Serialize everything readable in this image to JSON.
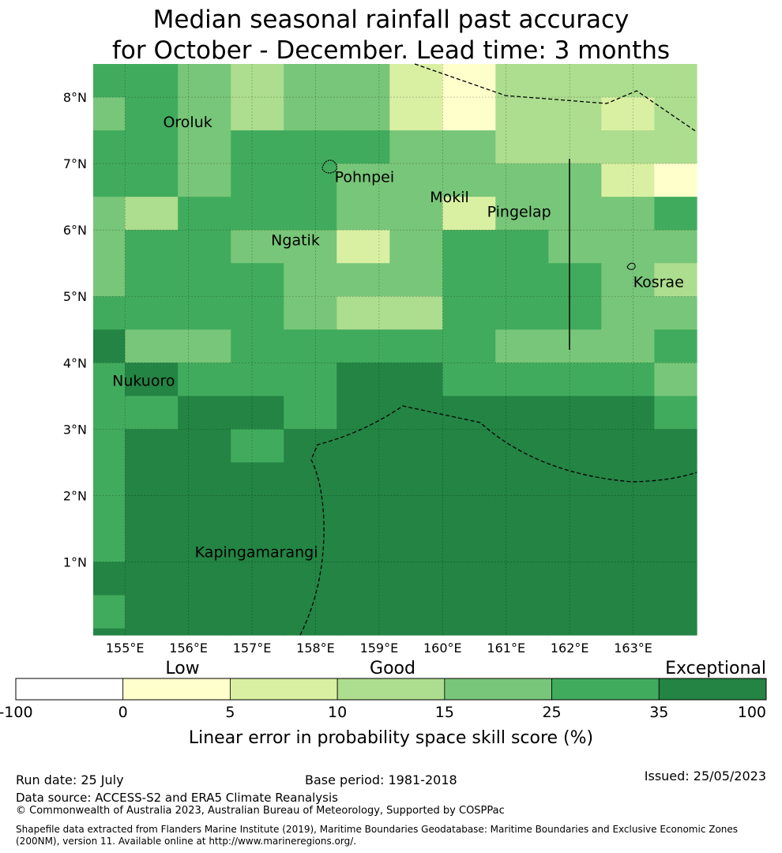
{
  "title": {
    "line1": "Median seasonal rainfall past accuracy",
    "line2": "for October - December. Lead time: 3 months"
  },
  "map": {
    "lon_range": [
      154.5,
      164.0
    ],
    "lat_range": [
      -0.1,
      8.5
    ],
    "x_ticks": [
      {
        "lon": 155,
        "label": "155°E"
      },
      {
        "lon": 156,
        "label": "156°E"
      },
      {
        "lon": 157,
        "label": "157°E"
      },
      {
        "lon": 158,
        "label": "158°E"
      },
      {
        "lon": 159,
        "label": "159°E"
      },
      {
        "lon": 160,
        "label": "160°E"
      },
      {
        "lon": 161,
        "label": "161°E"
      },
      {
        "lon": 162,
        "label": "162°E"
      },
      {
        "lon": 163,
        "label": "163°E"
      }
    ],
    "y_ticks": [
      {
        "lat": 8,
        "label": "8°N"
      },
      {
        "lat": 7,
        "label": "7°N"
      },
      {
        "lat": 6,
        "label": "6°N"
      },
      {
        "lat": 5,
        "label": "5°N"
      },
      {
        "lat": 4,
        "label": "4°N"
      },
      {
        "lat": 3,
        "label": "3°N"
      },
      {
        "lat": 2,
        "label": "2°N"
      },
      {
        "lat": 1,
        "label": "1°N"
      }
    ],
    "places": [
      {
        "name": "Oroluk",
        "lon": 155.6,
        "lat": 7.55
      },
      {
        "name": "Pohnpei",
        "lon": 158.3,
        "lat": 6.72
      },
      {
        "name": "Mokil",
        "lon": 159.8,
        "lat": 6.42
      },
      {
        "name": "Pingelap",
        "lon": 160.7,
        "lat": 6.2
      },
      {
        "name": "Ngatik",
        "lon": 157.3,
        "lat": 5.77
      },
      {
        "name": "Kosrae",
        "lon": 163.0,
        "lat": 5.14
      },
      {
        "name": "Nukuoro",
        "lon": 154.8,
        "lat": 3.65
      },
      {
        "name": "Kapingamarangi",
        "lon": 156.1,
        "lat": 1.07
      }
    ],
    "grid": {
      "lon_edges": [
        154.5,
        155.0,
        155.833,
        156.667,
        157.5,
        158.333,
        159.167,
        160.0,
        160.833,
        161.667,
        162.5,
        163.333,
        164.0
      ],
      "lat_edges": [
        8.5,
        8.333,
        7.5,
        6.667,
        5.833,
        5.0,
        4.167,
        3.333,
        2.5,
        1.667,
        0.833,
        0.0,
        -0.1
      ],
      "rows": [
        [
          4,
          4,
          3,
          2,
          3,
          3,
          1,
          0,
          2,
          2,
          2,
          2
        ],
        [
          3,
          4,
          3,
          2,
          3,
          3,
          1,
          0,
          2,
          2,
          1,
          2
        ],
        [
          4,
          4,
          3,
          4,
          4,
          4,
          3,
          3,
          2,
          2,
          2,
          2
        ],
        [
          4,
          4,
          3,
          4,
          4,
          3,
          3,
          3,
          3,
          3,
          1,
          0
        ],
        [
          3,
          2,
          4,
          4,
          4,
          3,
          3,
          1,
          3,
          3,
          3,
          4
        ],
        [
          3,
          4,
          4,
          3,
          3,
          1,
          3,
          4,
          4,
          3,
          3,
          3
        ],
        [
          3,
          4,
          4,
          4,
          3,
          3,
          3,
          4,
          4,
          4,
          3,
          2
        ],
        [
          4,
          4,
          4,
          4,
          3,
          2,
          2,
          4,
          4,
          4,
          3,
          3
        ],
        [
          5,
          3,
          3,
          4,
          4,
          4,
          4,
          4,
          3,
          3,
          3,
          4
        ],
        [
          4,
          5,
          4,
          4,
          4,
          5,
          5,
          4,
          4,
          4,
          4,
          3
        ],
        [
          4,
          4,
          5,
          5,
          4,
          5,
          5,
          5,
          5,
          5,
          5,
          4
        ],
        [
          4,
          5,
          5,
          4,
          5,
          5,
          5,
          5,
          5,
          5,
          5,
          5
        ],
        [
          4,
          5,
          5,
          5,
          5,
          5,
          5,
          5,
          5,
          5,
          5,
          5
        ],
        [
          5,
          5,
          5,
          5,
          5,
          5,
          5,
          5,
          5,
          5,
          5,
          5
        ],
        [
          4,
          5,
          5,
          5,
          5,
          5,
          5,
          5,
          5,
          5,
          5,
          5
        ],
        [
          5,
          5,
          5,
          5,
          5,
          5,
          5,
          5,
          5,
          5,
          5,
          5
        ]
      ],
      "row_lat_edges": [
        8.5,
        8.0,
        7.5,
        7.0,
        6.5,
        6.0,
        5.5,
        5.0,
        4.5,
        4.0,
        3.5,
        3.0,
        2.5,
        1.0,
        0.5,
        0.0,
        -0.1
      ]
    }
  },
  "colorbar": {
    "colors": [
      "#ffffff",
      "#ffffcc",
      "#d9f0a3",
      "#addd8e",
      "#78c679",
      "#41ab5d",
      "#238443"
    ],
    "ticks": [
      "-100",
      "0",
      "5",
      "10",
      "15",
      "25",
      "35",
      "100"
    ],
    "category_labels": {
      "low": "Low",
      "good": "Good",
      "exceptional": "Exceptional"
    },
    "label": "Linear error in probability space skill score (%)"
  },
  "footer": {
    "run_date": "Run date: 25 July",
    "base_period": "Base period: 1981-2018",
    "issued": "Issued: 25/05/2023",
    "data_source": "Data source: ACCESS-S2 and ERA5 Climate Reanalysis",
    "copyright": "© Commonwealth of Australia 2023, Australian Bureau of Meteorology, Supported by COSPPac",
    "shapefile": "Shapefile data extracted from Flanders Marine Institute (2019), Maritime Boundaries Geodatabase: Maritime Boundaries and Exclusive Economic Zones (200NM), version 11. Available online at http://www.marineregions.org/."
  }
}
